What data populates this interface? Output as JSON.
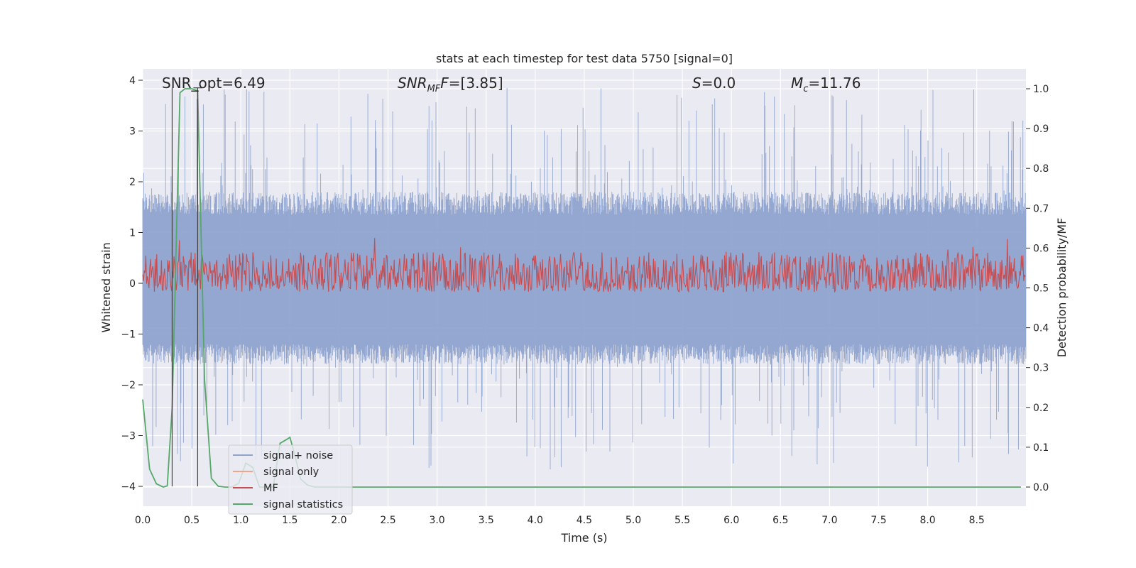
{
  "chart_data": {
    "type": "line",
    "title": "stats at each timestep for test data 5750 [signal=0]",
    "xlabel": "Time (s)",
    "ylabel_left": "Whitened strain",
    "ylabel_right": "Detection probability/MF",
    "xlim": [
      0.0,
      9.0
    ],
    "ylim_left": [
      -4.4,
      4.2
    ],
    "ylim_right": [
      -0.05,
      1.035
    ],
    "x_ticks": [
      "0.0",
      "0.5",
      "1.0",
      "1.5",
      "2.0",
      "2.5",
      "3.0",
      "3.5",
      "4.0",
      "4.5",
      "5.0",
      "5.5",
      "6.0",
      "6.5",
      "7.0",
      "7.5",
      "8.0",
      "8.5"
    ],
    "y_ticks_left": [
      "−4",
      "−3",
      "−2",
      "−1",
      "0",
      "1",
      "2",
      "3",
      "4"
    ],
    "y_ticks_right": [
      "0.0",
      "0.1",
      "0.2",
      "0.3",
      "0.4",
      "0.5",
      "0.6",
      "0.7",
      "0.8",
      "0.9",
      "1.0"
    ],
    "grid": true,
    "legend_placement": "lower-left",
    "annotations": {
      "snr_opt": "SNR_opt=6.49",
      "snr_mf_name": "SNR",
      "snr_mf_sub": "MF",
      "snr_mf_value": "=[3.85]",
      "s_name": "S",
      "s_value": "=0.0",
      "mc_name": "M",
      "mc_sub": "c",
      "mc_value": "=11.76"
    },
    "markers": {
      "vertical_lines_x": [
        0.3,
        0.56
      ],
      "ymin_left": -4.0,
      "ymax_left": 3.85
    },
    "series": [
      {
        "name": "signal+ noise",
        "color": "#8fa3cd",
        "axis": "left",
        "description_stats": {
          "core_low": -1.6,
          "core_high": 1.8,
          "spike_low": -3.7,
          "spike_high": 3.85
        }
      },
      {
        "name": "signal only",
        "color": "#f0a58a",
        "axis": "left",
        "values": []
      },
      {
        "name": "MF",
        "color": "#c44e52",
        "axis": "right",
        "description_stats": {
          "low": 0.51,
          "high": 0.59,
          "peak": 0.63
        }
      },
      {
        "name": "signal statistics",
        "color": "#55a868",
        "axis": "right",
        "x": [
          0.0,
          0.07,
          0.14,
          0.21,
          0.25,
          0.3,
          0.38,
          0.43,
          0.5,
          0.56,
          0.63,
          0.7,
          0.77,
          0.84,
          0.91,
          0.98,
          1.05,
          1.12,
          1.19,
          1.26,
          1.33,
          1.4,
          1.47,
          1.5,
          1.54,
          1.61,
          1.68,
          1.75,
          2.0,
          3.0,
          5.0,
          7.0,
          8.95
        ],
        "values": [
          0.22,
          0.045,
          0.008,
          0.0,
          0.003,
          0.2,
          0.99,
          1.0,
          1.0,
          0.995,
          0.27,
          0.022,
          0.002,
          0.0,
          0.0,
          0.01,
          0.06,
          0.05,
          0.0,
          0.0,
          0.0,
          0.11,
          0.12,
          0.125,
          0.09,
          0.02,
          0.005,
          0.0,
          0.0,
          0.0,
          0.0,
          0.0,
          0.0
        ]
      }
    ]
  }
}
